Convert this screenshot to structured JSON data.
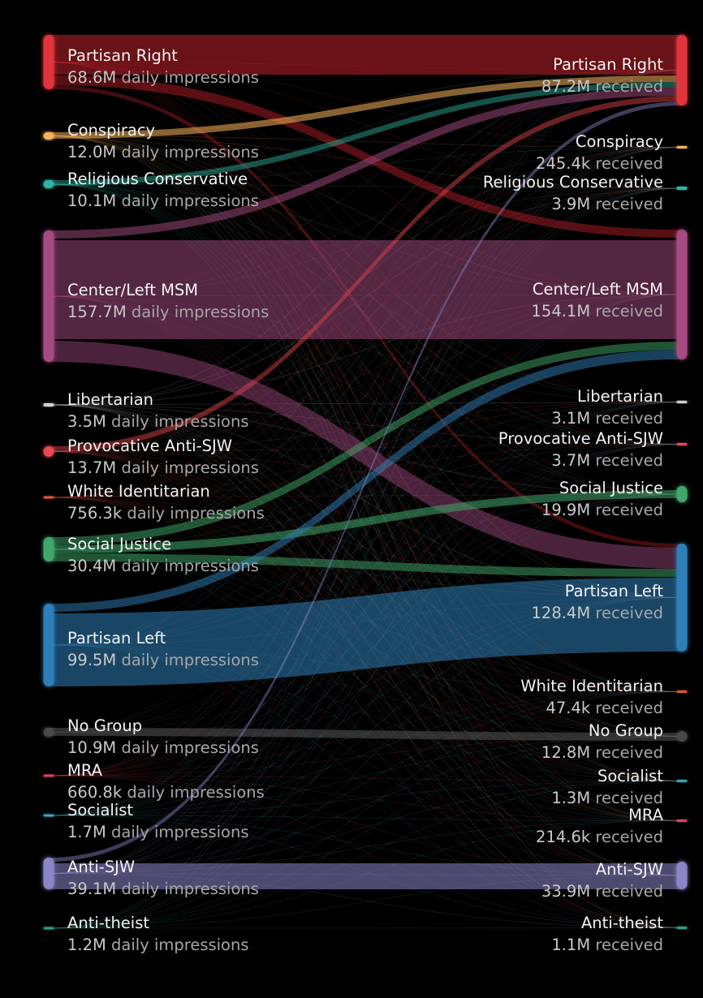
{
  "left_nodes": [
    {
      "id": "pr",
      "name": "Partisan Right",
      "value": "68.6M",
      "unit": "daily impressions",
      "color": "#e0353e"
    },
    {
      "id": "con",
      "name": "Conspiracy",
      "value": "12.0M",
      "unit": "daily impressions",
      "color": "#f6b35a"
    },
    {
      "id": "rc",
      "name": "Religious Conservative",
      "value": "10.1M",
      "unit": "daily impressions",
      "color": "#2fb5a4"
    },
    {
      "id": "msm",
      "name": "Center/Left MSM",
      "value": "157.7M",
      "unit": "daily impressions",
      "color": "#a64c82"
    },
    {
      "id": "lib",
      "name": "Libertarian",
      "value": "3.5M",
      "unit": "daily impressions",
      "color": "#cfcfcf"
    },
    {
      "id": "pas",
      "name": "Provocative Anti-SJW",
      "value": "13.7M",
      "unit": "daily impressions",
      "color": "#e8484c"
    },
    {
      "id": "wi",
      "name": "White Identitarian",
      "value": "756.3k",
      "unit": "daily impressions",
      "color": "#d9533a"
    },
    {
      "id": "sj",
      "name": "Social Justice",
      "value": "30.4M",
      "unit": "daily impressions",
      "color": "#3fa76a"
    },
    {
      "id": "pl",
      "name": "Partisan Left",
      "value": "99.5M",
      "unit": "daily impressions",
      "color": "#2f7fb8"
    },
    {
      "id": "ng",
      "name": "No Group",
      "value": "10.9M",
      "unit": "daily impressions",
      "color": "#4a4a4a"
    },
    {
      "id": "mra",
      "name": "MRA",
      "value": "660.8k",
      "unit": "daily impressions",
      "color": "#d94060"
    },
    {
      "id": "soc",
      "name": "Socialist",
      "value": "1.7M",
      "unit": "daily impressions",
      "color": "#35a6b3"
    },
    {
      "id": "asj",
      "name": "Anti-SJW",
      "value": "39.1M",
      "unit": "daily impressions",
      "color": "#8b86c8"
    },
    {
      "id": "ath",
      "name": "Anti-theist",
      "value": "1.2M",
      "unit": "daily impressions",
      "color": "#2a9d8f"
    }
  ],
  "right_nodes": [
    {
      "id": "pr",
      "name": "Partisan Right",
      "value": "87.2M",
      "unit": "received",
      "color": "#e0353e"
    },
    {
      "id": "con",
      "name": "Conspiracy",
      "value": "245.4k",
      "unit": "received",
      "color": "#f6b35a"
    },
    {
      "id": "rc",
      "name": "Religious Conservative",
      "value": "3.9M",
      "unit": "received",
      "color": "#2fb5a4"
    },
    {
      "id": "msm",
      "name": "Center/Left MSM",
      "value": "154.1M",
      "unit": "received",
      "color": "#a64c82"
    },
    {
      "id": "lib",
      "name": "Libertarian",
      "value": "3.1M",
      "unit": "received",
      "color": "#cfcfcf"
    },
    {
      "id": "pas",
      "name": "Provocative Anti-SJW",
      "value": "3.7M",
      "unit": "received",
      "color": "#e8484c"
    },
    {
      "id": "sj",
      "name": "Social Justice",
      "value": "19.9M",
      "unit": "received",
      "color": "#3fa76a"
    },
    {
      "id": "pl",
      "name": "Partisan Left",
      "value": "128.4M",
      "unit": "received",
      "color": "#2f7fb8"
    },
    {
      "id": "wi",
      "name": "White Identitarian",
      "value": "47.4k",
      "unit": "received",
      "color": "#d9533a"
    },
    {
      "id": "ng",
      "name": "No Group",
      "value": "12.8M",
      "unit": "received",
      "color": "#4a4a4a"
    },
    {
      "id": "soc",
      "name": "Socialist",
      "value": "1.3M",
      "unit": "received",
      "color": "#35a6b3"
    },
    {
      "id": "mra",
      "name": "MRA",
      "value": "214.6k",
      "unit": "received",
      "color": "#d94060"
    },
    {
      "id": "asj",
      "name": "Anti-SJW",
      "value": "33.9M",
      "unit": "received",
      "color": "#8b86c8"
    },
    {
      "id": "ath",
      "name": "Anti-theist",
      "value": "1.1M",
      "unit": "received",
      "color": "#2a9d8f"
    }
  ]
}
